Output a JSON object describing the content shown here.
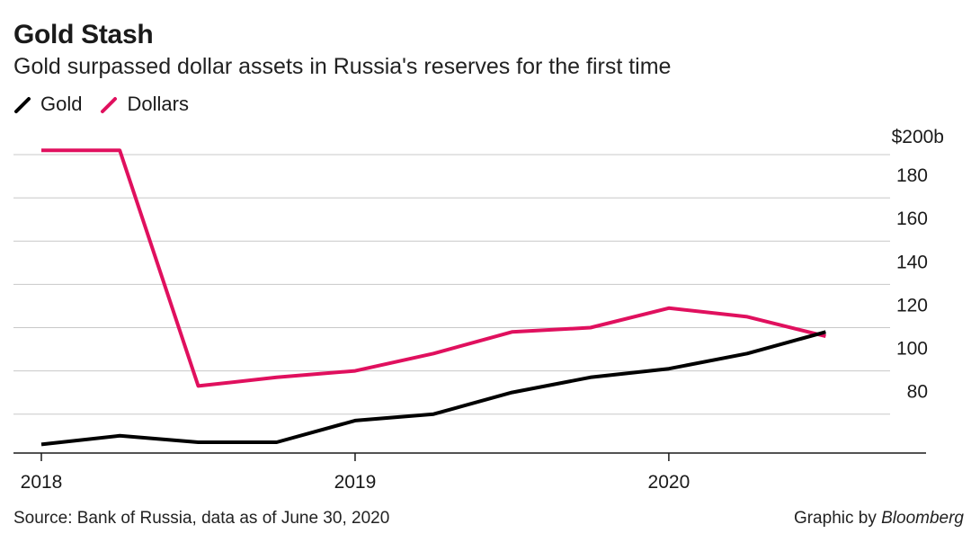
{
  "header": {
    "title": "Gold Stash",
    "subtitle": "Gold surpassed dollar assets in Russia's reserves for the first time"
  },
  "legend": [
    {
      "label": "Gold",
      "color": "#000000"
    },
    {
      "label": "Dollars",
      "color": "#e0105e"
    }
  ],
  "footer": {
    "source": "Source: Bank of Russia, data as of June 30, 2020",
    "credit_prefix": "Graphic by",
    "credit_brand": "Bloomberg"
  },
  "chart_data": {
    "type": "line",
    "title": "Gold Stash",
    "subtitle": "Gold surpassed dollar assets in Russia's reserves for the first time",
    "xlabel": "",
    "ylabel": "",
    "ylim": [
      62,
      200
    ],
    "xlim": [
      2018.0,
      2020.625
    ],
    "y_axis_side": "right",
    "grid": true,
    "x_ticks": [
      {
        "value": 2018,
        "label": "2018"
      },
      {
        "value": 2019,
        "label": "2019"
      },
      {
        "value": 2020,
        "label": "2020"
      }
    ],
    "y_ticks": [
      {
        "value": 80,
        "label": "80"
      },
      {
        "value": 100,
        "label": "100"
      },
      {
        "value": 120,
        "label": "120"
      },
      {
        "value": 140,
        "label": "140"
      },
      {
        "value": 160,
        "label": "160"
      },
      {
        "value": 180,
        "label": "180"
      },
      {
        "value": 200,
        "label": "$200b"
      }
    ],
    "series": [
      {
        "name": "Gold",
        "color": "#000000",
        "points": [
          {
            "x": 2018.0,
            "y": 66
          },
          {
            "x": 2018.25,
            "y": 70
          },
          {
            "x": 2018.5,
            "y": 67
          },
          {
            "x": 2018.75,
            "y": 67
          },
          {
            "x": 2019.0,
            "y": 77
          },
          {
            "x": 2019.25,
            "y": 80
          },
          {
            "x": 2019.5,
            "y": 90
          },
          {
            "x": 2019.75,
            "y": 97
          },
          {
            "x": 2020.0,
            "y": 101
          },
          {
            "x": 2020.25,
            "y": 108
          },
          {
            "x": 2020.5,
            "y": 118
          }
        ]
      },
      {
        "name": "Dollars",
        "color": "#e0105e",
        "points": [
          {
            "x": 2018.0,
            "y": 202
          },
          {
            "x": 2018.25,
            "y": 202
          },
          {
            "x": 2018.5,
            "y": 93
          },
          {
            "x": 2018.75,
            "y": 97
          },
          {
            "x": 2019.0,
            "y": 100
          },
          {
            "x": 2019.25,
            "y": 108
          },
          {
            "x": 2019.5,
            "y": 118
          },
          {
            "x": 2019.75,
            "y": 120
          },
          {
            "x": 2020.0,
            "y": 129
          },
          {
            "x": 2020.25,
            "y": 125
          },
          {
            "x": 2020.5,
            "y": 116
          }
        ]
      }
    ]
  }
}
